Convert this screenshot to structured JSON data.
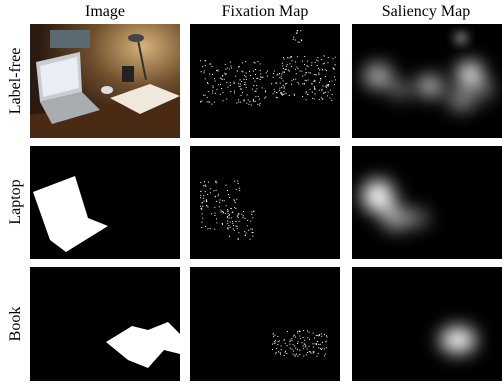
{
  "columns": [
    "Image",
    "Fixation Map",
    "Saliency Map"
  ],
  "rows": [
    "Label-free",
    "Laptop",
    "Book"
  ]
}
